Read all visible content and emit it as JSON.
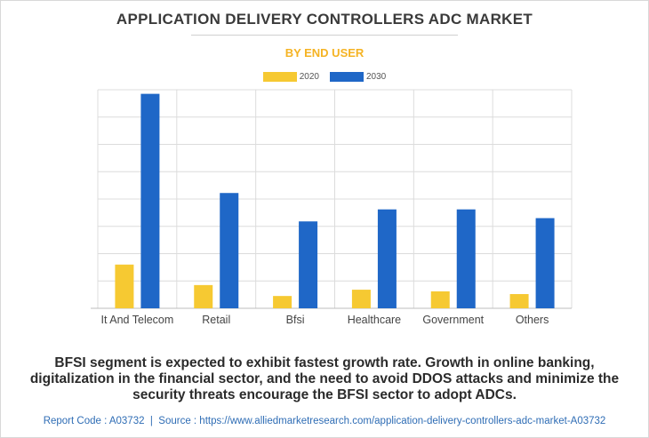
{
  "title": "APPLICATION DELIVERY CONTROLLERS ADC MARKET",
  "subtitle": "BY END USER",
  "caption": "BFSI segment is expected to exhibit fastest growth rate. Growth in online banking, digitalization in the financial sector, and the need to avoid DDOS attacks and minimize the security threats encourage the BFSI sector to adopt ADCs.",
  "footer": {
    "report_code": "Report Code : A03732",
    "separator": "|",
    "source": "Source : https://www.alliedmarketresearch.com/application-delivery-controllers-adc-market-A03732"
  },
  "colors": {
    "series_2020": "#f6c932",
    "series_2030": "#1f67c7",
    "grid": "#dcdcdc"
  },
  "chart_data": {
    "type": "bar",
    "title": "APPLICATION DELIVERY CONTROLLERS ADC MARKET",
    "subtitle": "BY END USER",
    "categories": [
      "It And Telecom",
      "Retail",
      "Bfsi",
      "Healthcare",
      "Government",
      "Others"
    ],
    "series": [
      {
        "name": "2020",
        "values": [
          1.6,
          0.85,
          0.45,
          0.68,
          0.62,
          0.52
        ]
      },
      {
        "name": "2030",
        "values": [
          7.85,
          4.22,
          3.18,
          3.62,
          3.62,
          3.3
        ]
      }
    ],
    "ylim": [
      0,
      8
    ],
    "yticks_shown": false,
    "grid": true,
    "legend_position": "top-center"
  }
}
